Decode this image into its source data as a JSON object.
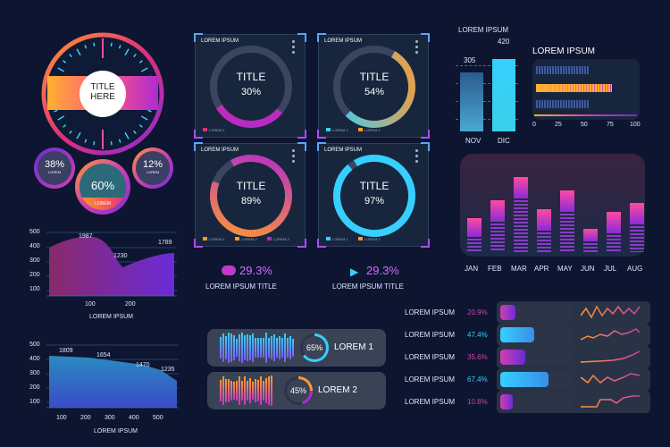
{
  "gauge": {
    "title_line1": "TITLE",
    "title_line2": "HERE"
  },
  "small_gauges": [
    {
      "value": "38%",
      "label": "LOREM"
    },
    {
      "value": "60%",
      "label": "LOREM"
    },
    {
      "value": "12%",
      "label": "LOREM"
    }
  ],
  "donut_panels": [
    {
      "header": "LOREM IPSUM",
      "title": "TITLE",
      "value": "30%",
      "percent": 30,
      "legend": [
        "LOREM 1"
      ]
    },
    {
      "header": "LOREM IPSUM",
      "title": "TITLE",
      "value": "54%",
      "percent": 54,
      "legend": [
        "LOREM 1",
        "LOREM 2"
      ]
    },
    {
      "header": "LOREM IPSUM",
      "title": "TITLE",
      "value": "89%",
      "percent": 89,
      "legend": [
        "LOREM 1",
        "LOREM 2",
        "LOREM 3"
      ]
    },
    {
      "header": "LOREM IPSUM",
      "title": "TITLE",
      "value": "97%",
      "percent": 97,
      "legend": [
        "LOREM 1",
        "LOREM 2"
      ]
    }
  ],
  "stats": [
    {
      "value": "29.3%",
      "label": "LOREM IPSUM TITLE",
      "icon": "cloud-download-icon"
    },
    {
      "value": "29.3%",
      "label": "LOREM IPSUM TITLE",
      "icon": "speaker-icon"
    }
  ],
  "area_chart_1": {
    "yticks": [
      "500",
      "400",
      "300",
      "200",
      "100"
    ],
    "xticks": [
      "100",
      "200"
    ],
    "xlabel": "LOREM IPSUM",
    "annotations": [
      "1987",
      "1230",
      "1789"
    ]
  },
  "area_chart_2": {
    "yticks": [
      "500",
      "400",
      "300",
      "200",
      "100"
    ],
    "xticks": [
      "100",
      "200",
      "300",
      "400",
      "500"
    ],
    "xlabel": "LOREM IPSUM",
    "annotations": [
      "1809",
      "1654",
      "1470",
      "1235"
    ]
  },
  "barcode_rows": [
    {
      "value": "65%",
      "percent": 65,
      "label": "LOREM 1"
    },
    {
      "value": "45%",
      "percent": 45,
      "label": "LOREM 2"
    }
  ],
  "nov_dic": {
    "title": "LOREM IPSUM",
    "bars": [
      {
        "label": "NOV",
        "value": "305"
      },
      {
        "label": "DIC",
        "value": "420"
      }
    ]
  },
  "hbar": {
    "title": "LOREM IPSUM",
    "xticks": [
      "0",
      "25",
      "50",
      "75",
      "100"
    ]
  },
  "monthly": {
    "months": [
      "JAN",
      "FEB",
      "MAR",
      "APR",
      "MAY",
      "JUN",
      "JUL",
      "AUG"
    ]
  },
  "progress_rows": [
    {
      "label": "LOREM IPSUM",
      "value": "20.9%",
      "fraction": 0.209,
      "color": "#d040b0"
    },
    {
      "label": "LOREM IPSUM",
      "value": "47.4%",
      "fraction": 0.474,
      "color": "#35d0ff"
    },
    {
      "label": "LOREM IPSUM",
      "value": "35.6%",
      "fraction": 0.356,
      "color": "#d040b0"
    },
    {
      "label": "LOREM IPSUM",
      "value": "67.4%",
      "fraction": 0.674,
      "color": "#35d0ff"
    },
    {
      "label": "LOREM IPSUM",
      "value": "10.8%",
      "fraction": 0.108,
      "color": "#d040b0"
    }
  ]
}
